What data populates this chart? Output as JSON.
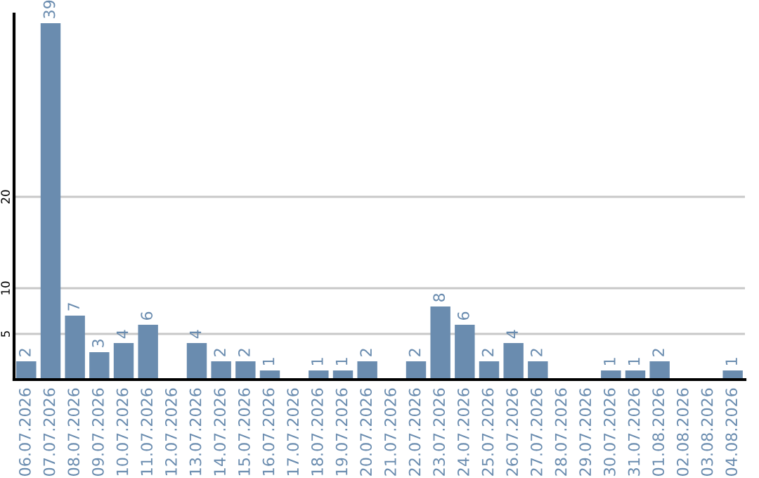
{
  "chart_data": {
    "type": "bar",
    "categories": [
      "06.07.2026",
      "07.07.2026",
      "08.07.2026",
      "09.07.2026",
      "10.07.2026",
      "11.07.2026",
      "12.07.2026",
      "13.07.2026",
      "14.07.2026",
      "15.07.2026",
      "16.07.2026",
      "17.07.2026",
      "18.07.2026",
      "19.07.2026",
      "20.07.2026",
      "21.07.2026",
      "22.07.2026",
      "23.07.2026",
      "24.07.2026",
      "25.07.2026",
      "26.07.2026",
      "27.07.2026",
      "28.07.2026",
      "29.07.2026",
      "30.07.2026",
      "31.07.2026",
      "01.08.2026",
      "02.08.2026",
      "03.08.2026",
      "04.08.2026"
    ],
    "values": [
      2,
      39,
      7,
      3,
      4,
      6,
      0,
      4,
      2,
      2,
      1,
      0,
      1,
      1,
      2,
      0,
      2,
      8,
      6,
      2,
      4,
      2,
      0,
      0,
      1,
      1,
      2,
      0,
      0,
      1
    ],
    "value_labels": [
      "2",
      "39",
      "7",
      "3",
      "4",
      "6",
      null,
      "4",
      "2",
      "2",
      "1",
      null,
      "1",
      "1",
      "2",
      null,
      "2",
      "8",
      "6",
      "2",
      "4",
      "2",
      null,
      null,
      "1",
      "1",
      "2",
      null,
      null,
      "1"
    ],
    "color": "#6a8caf",
    "ylim": [
      0,
      40
    ],
    "yticks": [
      5,
      10,
      20
    ],
    "grid": "y"
  }
}
